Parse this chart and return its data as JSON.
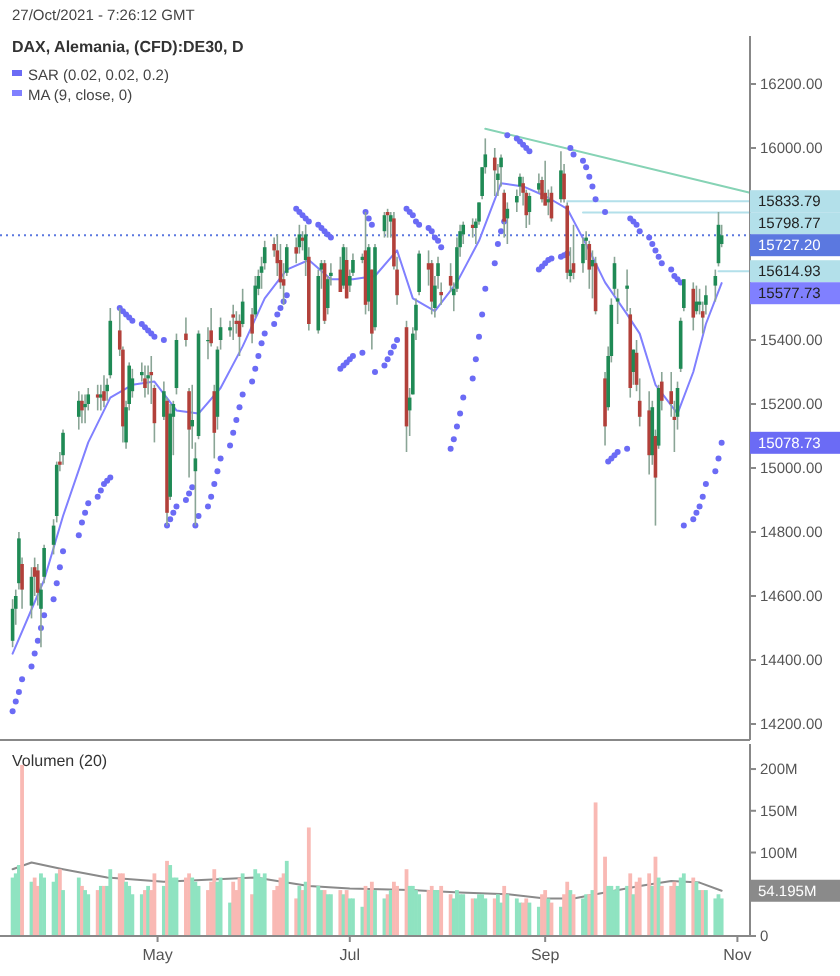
{
  "chart_data": [
    {
      "type": "candlestick",
      "title": "DAX, Alemania, (CFD):DE30, D",
      "x": [
        "2021-03-16",
        "2021-03-17",
        "2021-03-18",
        "2021-03-19",
        "2021-03-22",
        "2021-03-23",
        "2021-03-24",
        "2021-03-25",
        "2021-03-26",
        "2021-03-29",
        "2021-03-30",
        "2021-03-31",
        "2021-04-01",
        "2021-04-06",
        "2021-04-07",
        "2021-04-08",
        "2021-04-09",
        "2021-04-12",
        "2021-04-13",
        "2021-04-14",
        "2021-04-15",
        "2021-04-16",
        "2021-04-19",
        "2021-04-20",
        "2021-04-21",
        "2021-04-22",
        "2021-04-23",
        "2021-04-26",
        "2021-04-27",
        "2021-04-28",
        "2021-04-29",
        "2021-04-30",
        "2021-05-03",
        "2021-05-04",
        "2021-05-05",
        "2021-05-06",
        "2021-05-07",
        "2021-05-10",
        "2021-05-11",
        "2021-05-12",
        "2021-05-13",
        "2021-05-14",
        "2021-05-17",
        "2021-05-18",
        "2021-05-19",
        "2021-05-20",
        "2021-05-21",
        "2021-05-24",
        "2021-05-25",
        "2021-05-26",
        "2021-05-27",
        "2021-05-28",
        "2021-05-31",
        "2021-06-01",
        "2021-06-02",
        "2021-06-03",
        "2021-06-04",
        "2021-06-07",
        "2021-06-08",
        "2021-06-09",
        "2021-06-10",
        "2021-06-11",
        "2021-06-14",
        "2021-06-15",
        "2021-06-16",
        "2021-06-17",
        "2021-06-18",
        "2021-06-21",
        "2021-06-22",
        "2021-06-23",
        "2021-06-24",
        "2021-06-25",
        "2021-06-28",
        "2021-06-29",
        "2021-06-30",
        "2021-07-01",
        "2021-07-02",
        "2021-07-05",
        "2021-07-06",
        "2021-07-07",
        "2021-07-08",
        "2021-07-09",
        "2021-07-12",
        "2021-07-13",
        "2021-07-14",
        "2021-07-15",
        "2021-07-16",
        "2021-07-19",
        "2021-07-20",
        "2021-07-21",
        "2021-07-22",
        "2021-07-23",
        "2021-07-26",
        "2021-07-27",
        "2021-07-28",
        "2021-07-29",
        "2021-07-30",
        "2021-08-02",
        "2021-08-03",
        "2021-08-04",
        "2021-08-05",
        "2021-08-06",
        "2021-08-09",
        "2021-08-10",
        "2021-08-11",
        "2021-08-12",
        "2021-08-13",
        "2021-08-16",
        "2021-08-17",
        "2021-08-18",
        "2021-08-19",
        "2021-08-20",
        "2021-08-23",
        "2021-08-24",
        "2021-08-25",
        "2021-08-26",
        "2021-08-27",
        "2021-08-30",
        "2021-08-31",
        "2021-09-01",
        "2021-09-02",
        "2021-09-03",
        "2021-09-06",
        "2021-09-07",
        "2021-09-08",
        "2021-09-09",
        "2021-09-10",
        "2021-09-13",
        "2021-09-14",
        "2021-09-15",
        "2021-09-16",
        "2021-09-17",
        "2021-09-20",
        "2021-09-21",
        "2021-09-22",
        "2021-09-23",
        "2021-09-24",
        "2021-09-27",
        "2021-09-28",
        "2021-09-29",
        "2021-09-30",
        "2021-10-01",
        "2021-10-04",
        "2021-10-05",
        "2021-10-06",
        "2021-10-07",
        "2021-10-08",
        "2021-10-11",
        "2021-10-12",
        "2021-10-13",
        "2021-10-14",
        "2021-10-15",
        "2021-10-18",
        "2021-10-19",
        "2021-10-20",
        "2021-10-21",
        "2021-10-22",
        "2021-10-25",
        "2021-10-26",
        "2021-10-27"
      ],
      "ohlc": [
        [
          14460,
          14590,
          14440,
          14560
        ],
        [
          14560,
          14620,
          14510,
          14600
        ],
        [
          14640,
          14800,
          14620,
          14780
        ],
        [
          14700,
          14720,
          14560,
          14620
        ],
        [
          14570,
          14690,
          14530,
          14660
        ],
        [
          14690,
          14720,
          14600,
          14660
        ],
        [
          14680,
          14700,
          14570,
          14610
        ],
        [
          14560,
          14640,
          14440,
          14620
        ],
        [
          14660,
          14760,
          14640,
          14750
        ],
        [
          14760,
          14840,
          14730,
          14820
        ],
        [
          14850,
          15020,
          14830,
          15010
        ],
        [
          15020,
          15050,
          14990,
          15010
        ],
        [
          15040,
          15120,
          15010,
          15110
        ],
        [
          15160,
          15240,
          15120,
          15210
        ],
        [
          15210,
          15230,
          15140,
          15180
        ],
        [
          15190,
          15230,
          15140,
          15200
        ],
        [
          15200,
          15250,
          15180,
          15230
        ],
        [
          15230,
          15260,
          15180,
          15220
        ],
        [
          15220,
          15260,
          15180,
          15230
        ],
        [
          15240,
          15290,
          15190,
          15210
        ],
        [
          15240,
          15280,
          15210,
          15260
        ],
        [
          15290,
          15500,
          15280,
          15460
        ],
        [
          15430,
          15500,
          15350,
          15370
        ],
        [
          15370,
          15380,
          15080,
          15130
        ],
        [
          15080,
          15210,
          15060,
          15190
        ],
        [
          15200,
          15330,
          15180,
          15320
        ],
        [
          15240,
          15310,
          15220,
          15280
        ],
        [
          15290,
          15330,
          15270,
          15300
        ],
        [
          15280,
          15320,
          15220,
          15250
        ],
        [
          15280,
          15320,
          15230,
          15290
        ],
        [
          15300,
          15350,
          15200,
          15290
        ],
        [
          15250,
          15260,
          15080,
          15140
        ],
        [
          15160,
          15270,
          15150,
          15240
        ],
        [
          15210,
          15220,
          14820,
          14860
        ],
        [
          14910,
          15200,
          14900,
          15170
        ],
        [
          15160,
          15210,
          15040,
          15200
        ],
        [
          15250,
          15420,
          15230,
          15400
        ],
        [
          15420,
          15470,
          15380,
          15400
        ],
        [
          15240,
          15250,
          14970,
          15120
        ],
        [
          15130,
          15260,
          15060,
          15150
        ],
        [
          14990,
          15080,
          14820,
          15030
        ],
        [
          15100,
          15430,
          15090,
          15420
        ],
        [
          15400,
          15440,
          15340,
          15400
        ],
        [
          15430,
          15500,
          15380,
          15390
        ],
        [
          15240,
          15260,
          15030,
          15110
        ],
        [
          15160,
          15380,
          15120,
          15370
        ],
        [
          15400,
          15470,
          15370,
          15440
        ],
        [
          15430,
          15460,
          15410,
          15440
        ],
        [
          15480,
          15510,
          15400,
          15470
        ],
        [
          15460,
          15490,
          15420,
          15450
        ],
        [
          15460,
          15480,
          15350,
          15410
        ],
        [
          15450,
          15560,
          15440,
          15520
        ],
        [
          15480,
          15500,
          15390,
          15420
        ],
        [
          15480,
          15600,
          15470,
          15570
        ],
        [
          15560,
          15620,
          15540,
          15600
        ],
        [
          15610,
          15660,
          15560,
          15630
        ],
        [
          15640,
          15710,
          15620,
          15690
        ],
        [
          15700,
          15720,
          15660,
          15680
        ],
        [
          15680,
          15730,
          15600,
          15640
        ],
        [
          15650,
          15700,
          15560,
          15580
        ],
        [
          15590,
          15640,
          15510,
          15570
        ],
        [
          15610,
          15700,
          15600,
          15690
        ],
        [
          15690,
          15720,
          15640,
          15670
        ],
        [
          15690,
          15760,
          15670,
          15730
        ],
        [
          15720,
          15740,
          15680,
          15710
        ],
        [
          15650,
          15760,
          15600,
          15730
        ],
        [
          15660,
          15690,
          15430,
          15450
        ],
        [
          15430,
          15620,
          15420,
          15600
        ],
        [
          15620,
          15650,
          15560,
          15640
        ],
        [
          15640,
          15650,
          15450,
          15460
        ],
        [
          15500,
          15600,
          15480,
          15590
        ],
        [
          15600,
          15640,
          15570,
          15610
        ],
        [
          15620,
          15660,
          15550,
          15550
        ],
        [
          15570,
          15700,
          15560,
          15690
        ],
        [
          15650,
          15690,
          15530,
          15530
        ],
        [
          15570,
          15620,
          15550,
          15600
        ],
        [
          15610,
          15670,
          15600,
          15650
        ],
        [
          15650,
          15670,
          15640,
          15660
        ],
        [
          15680,
          15800,
          15480,
          15510
        ],
        [
          15520,
          15700,
          15490,
          15690
        ],
        [
          15620,
          15620,
          15370,
          15420
        ],
        [
          15440,
          15700,
          15430,
          15690
        ],
        [
          15740,
          15800,
          15720,
          15790
        ],
        [
          15800,
          15810,
          15720,
          15790
        ],
        [
          15770,
          15800,
          15720,
          15790
        ],
        [
          15780,
          15800,
          15620,
          15630
        ],
        [
          15620,
          15660,
          15510,
          15540
        ],
        [
          15440,
          15460,
          15050,
          15130
        ],
        [
          15180,
          15250,
          15100,
          15220
        ],
        [
          15230,
          15440,
          15230,
          15420
        ],
        [
          15430,
          15530,
          15400,
          15510
        ],
        [
          15550,
          15680,
          15540,
          15670
        ],
        [
          15640,
          15680,
          15570,
          15620
        ],
        [
          15640,
          15650,
          15480,
          15520
        ],
        [
          15500,
          15600,
          15470,
          15570
        ],
        [
          15600,
          15660,
          15560,
          15640
        ],
        [
          15550,
          15580,
          15510,
          15540
        ],
        [
          15600,
          15640,
          15550,
          15570
        ],
        [
          15540,
          15580,
          15490,
          15560
        ],
        [
          15560,
          15720,
          15550,
          15690
        ],
        [
          15690,
          15760,
          15660,
          15740
        ],
        [
          15730,
          15770,
          15700,
          15760
        ],
        [
          15760,
          15780,
          15720,
          15750
        ],
        [
          15750,
          15780,
          15700,
          15770
        ],
        [
          15770,
          15830,
          15760,
          15830
        ],
        [
          15850,
          15940,
          15840,
          15940
        ],
        [
          15940,
          16030,
          15920,
          15980
        ],
        [
          15970,
          16000,
          15850,
          15930
        ],
        [
          15900,
          15950,
          15850,
          15920
        ],
        [
          15940,
          15980,
          15880,
          15970
        ],
        [
          15860,
          15870,
          15720,
          15770
        ],
        [
          15780,
          15830,
          15700,
          15810
        ],
        [
          15830,
          15870,
          15800,
          15850
        ],
        [
          15880,
          15920,
          15850,
          15910
        ],
        [
          15890,
          15910,
          15820,
          15860
        ],
        [
          15860,
          15870,
          15750,
          15790
        ],
        [
          15800,
          15860,
          15760,
          15850
        ],
        [
          15870,
          15920,
          15860,
          15890
        ],
        [
          15900,
          15910,
          15830,
          15840
        ],
        [
          15860,
          15960,
          15820,
          15820
        ],
        [
          15830,
          15870,
          15790,
          15840
        ],
        [
          15860,
          15880,
          15770,
          15780
        ],
        [
          15840,
          15990,
          15830,
          15930
        ],
        [
          15920,
          15950,
          15830,
          15840
        ],
        [
          15820,
          15830,
          15590,
          15610
        ],
        [
          15600,
          15690,
          15580,
          15620
        ],
        [
          15640,
          15760,
          15590,
          15610
        ],
        [
          15640,
          15720,
          15610,
          15700
        ],
        [
          15710,
          15740,
          15650,
          15720
        ],
        [
          15700,
          15710,
          15560,
          15620
        ],
        [
          15630,
          15680,
          15530,
          15650
        ],
        [
          15640,
          15660,
          15480,
          15490
        ],
        [
          15280,
          15300,
          15070,
          15130
        ],
        [
          15190,
          15380,
          15180,
          15350
        ],
        [
          15350,
          15530,
          15330,
          15510
        ],
        [
          15560,
          15660,
          15540,
          15640
        ],
        [
          15520,
          15560,
          15450,
          15530
        ],
        [
          15560,
          15620,
          15490,
          15570
        ],
        [
          15480,
          15500,
          15220,
          15250
        ],
        [
          15300,
          15370,
          15260,
          15370
        ],
        [
          15360,
          15400,
          15240,
          15260
        ],
        [
          15210,
          15280,
          15130,
          15160
        ],
        [
          15180,
          15240,
          14980,
          15040
        ],
        [
          15040,
          15210,
          15010,
          15190
        ],
        [
          15100,
          15120,
          14820,
          14970
        ],
        [
          15070,
          15260,
          15060,
          15250
        ],
        [
          15270,
          15300,
          15180,
          15210
        ],
        [
          15240,
          15300,
          15160,
          15200
        ],
        [
          15160,
          15210,
          15050,
          15150
        ],
        [
          15160,
          15270,
          15120,
          15250
        ],
        [
          15310,
          15470,
          15300,
          15460
        ],
        [
          15500,
          15590,
          15490,
          15590
        ],
        [
          15560,
          15580,
          15430,
          15470
        ],
        [
          15490,
          15570,
          15480,
          15520
        ],
        [
          15510,
          15560,
          15480,
          15520
        ],
        [
          15490,
          15520,
          15420,
          15470
        ],
        [
          15510,
          15570,
          15480,
          15540
        ],
        [
          15570,
          15620,
          15520,
          15600
        ],
        [
          15640,
          15800,
          15630,
          15760
        ],
        [
          15700,
          15760,
          15690,
          15727.2
        ]
      ],
      "series": [
        {
          "name": "SAR (0.02, 0.02, 0.2)",
          "type": "scatter",
          "marker": "circle",
          "color": "#6b6bf5",
          "x": [
            "2021-03-16",
            "2021-03-17",
            "2021-03-18",
            "2021-03-19",
            "2021-03-22",
            "2021-03-23",
            "2021-03-24",
            "2021-03-25",
            "2021-03-26",
            "2021-03-29",
            "2021-03-30",
            "2021-03-31",
            "2021-04-01",
            "2021-04-06",
            "2021-04-07",
            "2021-04-08",
            "2021-04-09",
            "2021-04-12",
            "2021-04-13",
            "2021-04-14",
            "2021-04-15",
            "2021-04-16",
            "2021-04-19",
            "2021-04-20",
            "2021-04-21",
            "2021-04-22",
            "2021-04-23",
            "2021-04-26",
            "2021-04-27",
            "2021-04-28",
            "2021-04-29",
            "2021-04-30",
            "2021-05-03",
            "2021-05-04",
            "2021-05-05",
            "2021-05-06",
            "2021-05-07",
            "2021-05-10",
            "2021-05-11",
            "2021-05-12",
            "2021-05-13",
            "2021-05-14",
            "2021-05-17",
            "2021-05-18",
            "2021-05-19",
            "2021-05-20",
            "2021-05-21",
            "2021-05-24",
            "2021-05-25",
            "2021-05-26",
            "2021-05-27",
            "2021-05-28",
            "2021-05-31",
            "2021-06-01",
            "2021-06-02",
            "2021-06-03",
            "2021-06-04",
            "2021-06-07",
            "2021-06-08",
            "2021-06-09",
            "2021-06-10",
            "2021-06-11",
            "2021-06-14",
            "2021-06-15",
            "2021-06-16",
            "2021-06-17",
            "2021-06-18",
            "2021-06-21",
            "2021-06-22",
            "2021-06-23",
            "2021-06-24",
            "2021-06-25",
            "2021-06-28",
            "2021-06-29",
            "2021-06-30",
            "2021-07-01",
            "2021-07-02",
            "2021-07-05",
            "2021-07-06",
            "2021-07-07",
            "2021-07-08",
            "2021-07-09",
            "2021-07-12",
            "2021-07-13",
            "2021-07-14",
            "2021-07-15",
            "2021-07-16",
            "2021-07-19",
            "2021-07-20",
            "2021-07-21",
            "2021-07-22",
            "2021-07-23",
            "2021-07-26",
            "2021-07-27",
            "2021-07-28",
            "2021-07-29",
            "2021-07-30",
            "2021-08-02",
            "2021-08-03",
            "2021-08-04",
            "2021-08-05",
            "2021-08-06",
            "2021-08-09",
            "2021-08-10",
            "2021-08-11",
            "2021-08-12",
            "2021-08-13",
            "2021-08-16",
            "2021-08-17",
            "2021-08-18",
            "2021-08-19",
            "2021-08-20",
            "2021-08-23",
            "2021-08-24",
            "2021-08-25",
            "2021-08-26",
            "2021-08-27",
            "2021-08-30",
            "2021-08-31",
            "2021-09-01",
            "2021-09-02",
            "2021-09-03",
            "2021-09-06",
            "2021-09-07",
            "2021-09-08",
            "2021-09-09",
            "2021-09-10",
            "2021-09-13",
            "2021-09-14",
            "2021-09-15",
            "2021-09-16",
            "2021-09-17",
            "2021-09-20",
            "2021-09-21",
            "2021-09-22",
            "2021-09-23",
            "2021-09-24",
            "2021-09-27",
            "2021-09-28",
            "2021-09-29",
            "2021-09-30",
            "2021-10-01",
            "2021-10-04",
            "2021-10-05",
            "2021-10-06",
            "2021-10-07",
            "2021-10-08",
            "2021-10-11",
            "2021-10-12",
            "2021-10-13",
            "2021-10-14",
            "2021-10-15",
            "2021-10-18",
            "2021-10-19",
            "2021-10-20",
            "2021-10-21",
            "2021-10-22",
            "2021-10-25",
            "2021-10-26",
            "2021-10-27"
          ],
          "values": [
            14240,
            14270,
            14300,
            14340,
            14380,
            14420,
            14460,
            14500,
            14540,
            14590,
            14640,
            14690,
            14740,
            14790,
            14830,
            14860,
            14890,
            14910,
            14930,
            14950,
            14960,
            14970,
            15500,
            15490,
            15480,
            15470,
            15460,
            15450,
            15440,
            15430,
            15420,
            15410,
            15400,
            14820,
            14840,
            14860,
            14880,
            14900,
            14920,
            14940,
            14820,
            14850,
            14880,
            14910,
            14950,
            14990,
            15030,
            15070,
            15110,
            15150,
            15190,
            15230,
            15270,
            15310,
            15350,
            15390,
            15420,
            15450,
            15480,
            15500,
            15520,
            15540,
            15810,
            15800,
            15790,
            15780,
            15770,
            15760,
            15750,
            15740,
            15730,
            15720,
            15310,
            15320,
            15330,
            15340,
            15350,
            15360,
            15800,
            15780,
            15760,
            15300,
            15320,
            15340,
            15360,
            15380,
            15400,
            15810,
            15800,
            15790,
            15770,
            15760,
            15750,
            15740,
            15720,
            15710,
            15690,
            15060,
            15090,
            15130,
            15170,
            15220,
            15280,
            15340,
            15410,
            15480,
            15560,
            15640,
            15700,
            15740,
            15770,
            16040,
            16030,
            16020,
            16010,
            16000,
            15990,
            15620,
            15630,
            15640,
            15650,
            15655,
            15660,
            15665,
            15670,
            16000,
            15980,
            15960,
            15940,
            15910,
            15880,
            15840,
            15800,
            15020,
            15030,
            15040,
            15050,
            15060,
            15780,
            15770,
            15760,
            15740,
            15720,
            15700,
            15680,
            15660,
            15640,
            15620,
            15600,
            15590,
            15580,
            14820,
            14840,
            14860,
            14880,
            14910,
            14950,
            14990,
            15030,
            15078.73
          ]
        },
        {
          "name": "MA (9, close, 0)",
          "type": "line",
          "color": "#8080ff",
          "x": [
            "2021-03-16",
            "2021-03-26",
            "2021-04-01",
            "2021-04-09",
            "2021-04-16",
            "2021-04-23",
            "2021-04-30",
            "2021-05-07",
            "2021-05-14",
            "2021-05-21",
            "2021-05-28",
            "2021-06-04",
            "2021-06-11",
            "2021-06-18",
            "2021-06-25",
            "2021-07-02",
            "2021-07-09",
            "2021-07-16",
            "2021-07-21",
            "2021-07-28",
            "2021-08-04",
            "2021-08-11",
            "2021-08-18",
            "2021-08-25",
            "2021-09-01",
            "2021-09-08",
            "2021-09-15",
            "2021-09-20",
            "2021-09-27",
            "2021-10-01",
            "2021-10-06",
            "2021-10-13",
            "2021-10-18",
            "2021-10-22",
            "2021-10-27"
          ],
          "values": [
            14420,
            14650,
            14850,
            15080,
            15220,
            15260,
            15270,
            15180,
            15170,
            15250,
            15380,
            15530,
            15620,
            15650,
            15590,
            15590,
            15600,
            15680,
            15530,
            15490,
            15580,
            15710,
            15890,
            15880,
            15850,
            15810,
            15680,
            15580,
            15480,
            15420,
            15260,
            15170,
            15300,
            15450,
            15577.73
          ]
        },
        {
          "type": "line",
          "color": "#86d3b5",
          "x": [
            "2021-08-13",
            "2021-11-05"
          ],
          "values": [
            16060,
            15860
          ]
        },
        {
          "type": "line",
          "color": "#b3e0ea",
          "x": [
            "2021-09-08",
            "2021-11-05"
          ],
          "values": [
            15833.79,
            15833.79
          ]
        },
        {
          "type": "line",
          "color": "#b3e0ea",
          "x": [
            "2021-09-13",
            "2021-11-05"
          ],
          "values": [
            15798.77,
            15798.77
          ]
        },
        {
          "type": "line",
          "color": "#b3e0ea",
          "x": [
            "2021-10-26",
            "2021-11-05"
          ],
          "values": [
            15614.93,
            15614.93
          ]
        }
      ],
      "xlim": [
        "2021-03-12",
        "2021-11-05"
      ],
      "ylim": [
        14150,
        16350
      ],
      "yticks": [
        {
          "value": 14200,
          "label": "14200.00"
        },
        {
          "value": 14400,
          "label": "14400.00"
        },
        {
          "value": 14600,
          "label": "14600.00"
        },
        {
          "value": 14800,
          "label": "14800.00"
        },
        {
          "value": 15000,
          "label": "15000.00"
        },
        {
          "value": 15200,
          "label": "15200.00"
        },
        {
          "value": 15400,
          "label": "15400.00"
        },
        {
          "value": 16000,
          "label": "16000.00"
        },
        {
          "value": 16200,
          "label": "16200.00"
        }
      ],
      "tick_labels": "y",
      "legend": "top left",
      "ref_lines": [
        {
          "axis": "y",
          "value": 15727.2,
          "label": "15727.20",
          "color": "#5b78e0",
          "line_style": "dotted"
        }
      ],
      "annotations": [
        "27/Oct/2021 - 7:26:12 GMT",
        {
          "text": "15833.79",
          "x": "2021-11-05",
          "y": 15833.79
        },
        {
          "text": "15798.77",
          "x": "2021-11-05",
          "y": 15798.77
        },
        {
          "text": "15614.93",
          "x": "2021-11-05",
          "y": 15614.93
        },
        {
          "text": "15577.73",
          "x": "2021-10-27",
          "y": 15577.73
        },
        {
          "text": "15078.73",
          "x": "2021-10-27",
          "y": 15078.73
        }
      ]
    },
    {
      "type": "bar",
      "title": "Volumen (20)",
      "x": [
        "2021-03-16",
        "2021-03-17",
        "2021-03-18",
        "2021-03-19",
        "2021-03-22",
        "2021-03-23",
        "2021-03-24",
        "2021-03-25",
        "2021-03-26",
        "2021-03-29",
        "2021-03-30",
        "2021-03-31",
        "2021-04-01",
        "2021-04-06",
        "2021-04-07",
        "2021-04-08",
        "2021-04-09",
        "2021-04-12",
        "2021-04-13",
        "2021-04-14",
        "2021-04-15",
        "2021-04-16",
        "2021-04-19",
        "2021-04-20",
        "2021-04-21",
        "2021-04-22",
        "2021-04-23",
        "2021-04-26",
        "2021-04-27",
        "2021-04-28",
        "2021-04-29",
        "2021-04-30",
        "2021-05-03",
        "2021-05-04",
        "2021-05-05",
        "2021-05-06",
        "2021-05-07",
        "2021-05-10",
        "2021-05-11",
        "2021-05-12",
        "2021-05-13",
        "2021-05-14",
        "2021-05-17",
        "2021-05-18",
        "2021-05-19",
        "2021-05-20",
        "2021-05-21",
        "2021-05-24",
        "2021-05-25",
        "2021-05-26",
        "2021-05-27",
        "2021-05-28",
        "2021-05-31",
        "2021-06-01",
        "2021-06-02",
        "2021-06-03",
        "2021-06-04",
        "2021-06-07",
        "2021-06-08",
        "2021-06-09",
        "2021-06-10",
        "2021-06-11",
        "2021-06-14",
        "2021-06-15",
        "2021-06-16",
        "2021-06-17",
        "2021-06-18",
        "2021-06-21",
        "2021-06-22",
        "2021-06-23",
        "2021-06-24",
        "2021-06-25",
        "2021-06-28",
        "2021-06-29",
        "2021-06-30",
        "2021-07-01",
        "2021-07-02",
        "2021-07-05",
        "2021-07-06",
        "2021-07-07",
        "2021-07-08",
        "2021-07-09",
        "2021-07-12",
        "2021-07-13",
        "2021-07-14",
        "2021-07-15",
        "2021-07-16",
        "2021-07-19",
        "2021-07-20",
        "2021-07-21",
        "2021-07-22",
        "2021-07-23",
        "2021-07-26",
        "2021-07-27",
        "2021-07-28",
        "2021-07-29",
        "2021-07-30",
        "2021-08-02",
        "2021-08-03",
        "2021-08-04",
        "2021-08-05",
        "2021-08-06",
        "2021-08-09",
        "2021-08-10",
        "2021-08-11",
        "2021-08-12",
        "2021-08-13",
        "2021-08-16",
        "2021-08-17",
        "2021-08-18",
        "2021-08-19",
        "2021-08-20",
        "2021-08-23",
        "2021-08-24",
        "2021-08-25",
        "2021-08-26",
        "2021-08-27",
        "2021-08-30",
        "2021-08-31",
        "2021-09-01",
        "2021-09-02",
        "2021-09-03",
        "2021-09-06",
        "2021-09-07",
        "2021-09-08",
        "2021-09-09",
        "2021-09-10",
        "2021-09-13",
        "2021-09-14",
        "2021-09-15",
        "2021-09-16",
        "2021-09-17",
        "2021-09-20",
        "2021-09-21",
        "2021-09-22",
        "2021-09-23",
        "2021-09-24",
        "2021-09-27",
        "2021-09-28",
        "2021-09-29",
        "2021-09-30",
        "2021-10-01",
        "2021-10-04",
        "2021-10-05",
        "2021-10-06",
        "2021-10-07",
        "2021-10-08",
        "2021-10-11",
        "2021-10-12",
        "2021-10-13",
        "2021-10-14",
        "2021-10-15",
        "2021-10-18",
        "2021-10-19",
        "2021-10-20",
        "2021-10-21",
        "2021-10-22",
        "2021-10-25",
        "2021-10-26",
        "2021-10-27"
      ],
      "values": [
        70,
        75,
        85,
        205,
        65,
        70,
        60,
        75,
        70,
        65,
        75,
        80,
        55,
        70,
        60,
        55,
        50,
        55,
        60,
        60,
        60,
        80,
        75,
        75,
        65,
        60,
        50,
        50,
        55,
        60,
        55,
        75,
        60,
        90,
        85,
        70,
        70,
        70,
        75,
        70,
        65,
        60,
        55,
        65,
        80,
        65,
        70,
        40,
        65,
        55,
        70,
        75,
        50,
        80,
        75,
        70,
        75,
        55,
        60,
        70,
        75,
        90,
        45,
        60,
        55,
        65,
        130,
        60,
        55,
        55,
        50,
        50,
        55,
        50,
        55,
        45,
        45,
        35,
        60,
        55,
        65,
        55,
        45,
        50,
        55,
        65,
        60,
        80,
        60,
        60,
        55,
        50,
        55,
        60,
        55,
        55,
        60,
        50,
        45,
        55,
        50,
        50,
        45,
        45,
        50,
        50,
        45,
        45,
        50,
        40,
        60,
        50,
        45,
        40,
        40,
        45,
        40,
        35,
        50,
        55,
        45,
        40,
        35,
        50,
        65,
        55,
        50,
        45,
        50,
        50,
        55,
        160,
        95,
        60,
        60,
        55,
        60,
        60,
        75,
        50,
        65,
        70,
        75,
        60,
        95,
        70,
        60,
        60,
        65,
        60,
        70,
        75,
        70,
        65,
        55,
        55,
        55,
        45,
        50,
        45
      ],
      "colors": [
        "#8fe3c1",
        "#8fe3c1",
        "#8fe3c1",
        "#f9b9b4",
        "#8fe3c1",
        "#f9b9b4",
        "#f9b9b4",
        "#8fe3c1",
        "#8fe3c1",
        "#8fe3c1",
        "#8fe3c1",
        "#f9b9b4",
        "#8fe3c1",
        "#8fe3c1",
        "#f9b9b4",
        "#8fe3c1",
        "#8fe3c1",
        "#f9b9b4",
        "#8fe3c1",
        "#f9b9b4",
        "#8fe3c1",
        "#8fe3c1",
        "#f9b9b4",
        "#f9b9b4",
        "#8fe3c1",
        "#8fe3c1",
        "#8fe3c1",
        "#8fe3c1",
        "#f9b9b4",
        "#8fe3c1",
        "#f9b9b4",
        "#f9b9b4",
        "#8fe3c1",
        "#f9b9b4",
        "#8fe3c1",
        "#8fe3c1",
        "#8fe3c1",
        "#f9b9b4",
        "#f9b9b4",
        "#8fe3c1",
        "#8fe3c1",
        "#8fe3c1",
        "#f9b9b4",
        "#f9b9b4",
        "#f9b9b4",
        "#8fe3c1",
        "#8fe3c1",
        "#8fe3c1",
        "#f9b9b4",
        "#f9b9b4",
        "#f9b9b4",
        "#8fe3c1",
        "#f9b9b4",
        "#8fe3c1",
        "#8fe3c1",
        "#8fe3c1",
        "#8fe3c1",
        "#f9b9b4",
        "#f9b9b4",
        "#f9b9b4",
        "#f9b9b4",
        "#8fe3c1",
        "#f9b9b4",
        "#8fe3c1",
        "#f9b9b4",
        "#8fe3c1",
        "#f9b9b4",
        "#8fe3c1",
        "#8fe3c1",
        "#f9b9b4",
        "#8fe3c1",
        "#8fe3c1",
        "#f9b9b4",
        "#8fe3c1",
        "#f9b9b4",
        "#8fe3c1",
        "#8fe3c1",
        "#8fe3c1",
        "#f9b9b4",
        "#8fe3c1",
        "#f9b9b4",
        "#8fe3c1",
        "#8fe3c1",
        "#f9b9b4",
        "#8fe3c1",
        "#f9b9b4",
        "#f9b9b4",
        "#f9b9b4",
        "#8fe3c1",
        "#8fe3c1",
        "#8fe3c1",
        "#8fe3c1",
        "#f9b9b4",
        "#f9b9b4",
        "#8fe3c1",
        "#8fe3c1",
        "#f9b9b4",
        "#f9b9b4",
        "#8fe3c1",
        "#8fe3c1",
        "#8fe3c1",
        "#8fe3c1",
        "#f9b9b4",
        "#8fe3c1",
        "#8fe3c1",
        "#8fe3c1",
        "#8fe3c1",
        "#f9b9b4",
        "#8fe3c1",
        "#8fe3c1",
        "#f9b9b4",
        "#8fe3c1",
        "#8fe3c1",
        "#8fe3c1",
        "#f9b9b4",
        "#f9b9b4",
        "#8fe3c1",
        "#8fe3c1",
        "#f9b9b4",
        "#f9b9b4",
        "#8fe3c1",
        "#f9b9b4",
        "#8fe3c1",
        "#f9b9b4",
        "#f9b9b4",
        "#8fe3c1",
        "#f9b9b4",
        "#8fe3c1",
        "#8fe3c1",
        "#f9b9b4",
        "#8fe3c1",
        "#f9b9b4",
        "#f9b9b4",
        "#8fe3c1",
        "#8fe3c1",
        "#8fe3c1",
        "#8fe3c1",
        "#8fe3c1",
        "#f9b9b4",
        "#8fe3c1",
        "#f9b9b4",
        "#f9b9b4",
        "#f9b9b4",
        "#8fe3c1",
        "#f9b9b4",
        "#8fe3c1",
        "#f9b9b4",
        "#f9b9b4",
        "#f9b9b4",
        "#8fe3c1",
        "#8fe3c1",
        "#8fe3c1",
        "#f9b9b4",
        "#8fe3c1",
        "#8fe3c1",
        "#f9b9b4",
        "#8fe3c1",
        "#8fe3c1",
        "#8fe3c1",
        "#8fe3c1"
      ],
      "series": [
        {
          "type": "line",
          "color": "#8a8a8a",
          "x": [
            "2021-03-16",
            "2021-03-22",
            "2021-04-01",
            "2021-04-15",
            "2021-05-03",
            "2021-05-20",
            "2021-06-01",
            "2021-06-18",
            "2021-07-01",
            "2021-07-20",
            "2021-08-05",
            "2021-08-20",
            "2021-09-01",
            "2021-09-10",
            "2021-09-20",
            "2021-10-01",
            "2021-10-11",
            "2021-10-20",
            "2021-10-27"
          ],
          "values": [
            80,
            88,
            80,
            70,
            65,
            68,
            70,
            60,
            57,
            55,
            52,
            50,
            45,
            45,
            52,
            60,
            66,
            64,
            54.195
          ]
        }
      ],
      "xlim": [
        "2021-03-12",
        "2021-11-05"
      ],
      "xticks": [
        {
          "value": "2021-05-01",
          "label": "May"
        },
        {
          "value": "2021-07-01",
          "label": "Jul"
        },
        {
          "value": "2021-09-01",
          "label": "Sep"
        },
        {
          "value": "2021-11-01",
          "label": "Nov"
        }
      ],
      "ylim": [
        0,
        230
      ],
      "yticks": [
        0,
        {
          "value": 100,
          "label": "100M"
        },
        {
          "value": 150,
          "label": "150M"
        },
        {
          "value": 200,
          "label": "200M"
        }
      ],
      "annotations": [
        {
          "text": "54.195M",
          "x": "2021-10-27",
          "y": 54.195
        }
      ]
    }
  ]
}
